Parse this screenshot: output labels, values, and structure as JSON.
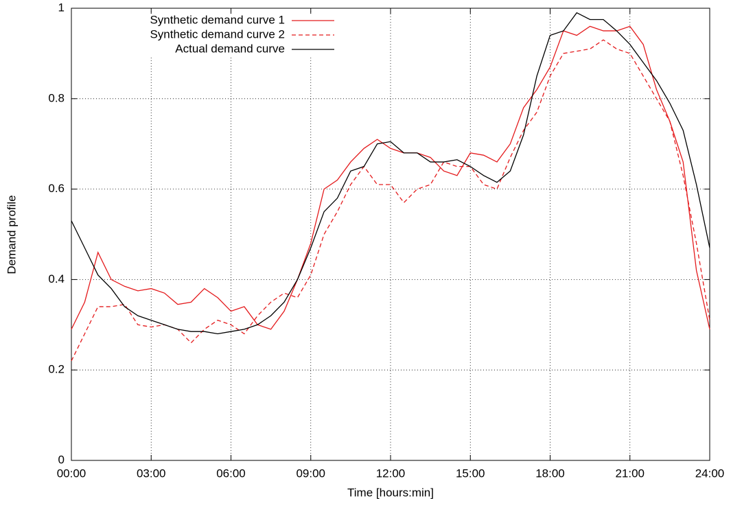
{
  "chart_data": {
    "type": "line",
    "x_label": "Time [hours:min]",
    "y_label": "Demand profile",
    "x": [
      0,
      0.5,
      1,
      1.5,
      2,
      2.5,
      3,
      3.5,
      4,
      4.5,
      5,
      5.5,
      6,
      6.5,
      7,
      7.5,
      8,
      8.5,
      9,
      9.5,
      10,
      10.5,
      11,
      11.5,
      12,
      12.5,
      13,
      13.5,
      14,
      14.5,
      15,
      15.5,
      16,
      16.5,
      17,
      17.5,
      18,
      18.5,
      19,
      19.5,
      20,
      20.5,
      21,
      21.5,
      22,
      22.5,
      23,
      23.5,
      24
    ],
    "series": [
      {
        "name": "Synthetic demand curve 1",
        "color": "#e41a1c",
        "line_style": "solid",
        "values": [
          0.29,
          0.35,
          0.46,
          0.4,
          0.385,
          0.375,
          0.38,
          0.37,
          0.345,
          0.35,
          0.38,
          0.36,
          0.33,
          0.34,
          0.3,
          0.29,
          0.33,
          0.4,
          0.48,
          0.6,
          0.62,
          0.66,
          0.69,
          0.71,
          0.69,
          0.68,
          0.68,
          0.67,
          0.64,
          0.63,
          0.68,
          0.675,
          0.66,
          0.7,
          0.78,
          0.82,
          0.87,
          0.95,
          0.94,
          0.96,
          0.95,
          0.95,
          0.96,
          0.92,
          0.82,
          0.75,
          0.66,
          0.42,
          0.29
        ]
      },
      {
        "name": "Synthetic demand curve 2",
        "color": "#e41a1c",
        "line_style": "dashed",
        "values": [
          0.22,
          0.28,
          0.34,
          0.34,
          0.345,
          0.3,
          0.295,
          0.3,
          0.29,
          0.26,
          0.29,
          0.31,
          0.3,
          0.28,
          0.32,
          0.35,
          0.37,
          0.36,
          0.41,
          0.5,
          0.55,
          0.61,
          0.65,
          0.61,
          0.61,
          0.57,
          0.6,
          0.61,
          0.66,
          0.65,
          0.65,
          0.61,
          0.6,
          0.67,
          0.73,
          0.77,
          0.85,
          0.9,
          0.905,
          0.91,
          0.93,
          0.91,
          0.9,
          0.85,
          0.8,
          0.75,
          0.63,
          0.48,
          0.31
        ]
      },
      {
        "name": "Actual demand curve",
        "color": "#000000",
        "line_style": "solid",
        "values": [
          0.53,
          0.47,
          0.41,
          0.38,
          0.34,
          0.32,
          0.31,
          0.3,
          0.29,
          0.285,
          0.285,
          0.28,
          0.285,
          0.29,
          0.3,
          0.32,
          0.35,
          0.4,
          0.47,
          0.55,
          0.58,
          0.64,
          0.65,
          0.7,
          0.705,
          0.68,
          0.68,
          0.66,
          0.66,
          0.665,
          0.65,
          0.63,
          0.615,
          0.64,
          0.72,
          0.85,
          0.94,
          0.95,
          0.99,
          0.975,
          0.975,
          0.95,
          0.92,
          0.88,
          0.84,
          0.79,
          0.73,
          0.61,
          0.47
        ]
      }
    ],
    "xlim": [
      0,
      24
    ],
    "xticks": [
      {
        "value": 0,
        "label": "00:00"
      },
      {
        "value": 3,
        "label": "03:00"
      },
      {
        "value": 6,
        "label": "06:00"
      },
      {
        "value": 9,
        "label": "09:00"
      },
      {
        "value": 12,
        "label": "12:00"
      },
      {
        "value": 15,
        "label": "15:00"
      },
      {
        "value": 18,
        "label": "18:00"
      },
      {
        "value": 21,
        "label": "21:00"
      },
      {
        "value": 24,
        "label": "24:00"
      }
    ],
    "ylim": [
      0,
      1
    ],
    "yticks": [
      0,
      0.2,
      0.4,
      0.6,
      0.8,
      1
    ],
    "grid": true,
    "legend": "top-left"
  }
}
